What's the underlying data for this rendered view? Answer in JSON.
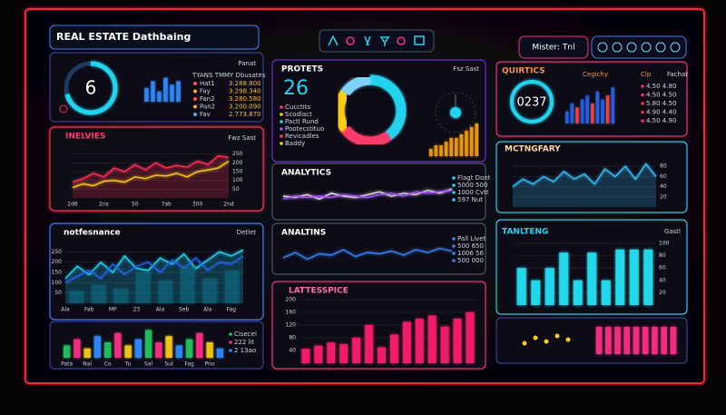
{
  "header": {
    "title": "REAL ESTATE Dathbaing",
    "user": "Mister: Tnl"
  },
  "kpi": {
    "big": "6",
    "legend_title": "TYANS TMMY Dbusates",
    "tag": "Panat",
    "rows": [
      {
        "name": "Hat1",
        "value": "3.288.800",
        "color": "#ff4d4d"
      },
      {
        "name": "Fay",
        "value": "3.298.340",
        "color": "#ffb020"
      },
      {
        "name": "Fan2",
        "value": "3.280.580",
        "color": "#ff4d4d"
      },
      {
        "name": "Pan2",
        "value": "3.200.090",
        "color": "#ffb020"
      },
      {
        "name": "Fav",
        "value": "2.773.870",
        "color": "#60a5fa"
      }
    ]
  },
  "inelvies": {
    "title": "INELVIES",
    "tag": "Fwz Sast"
  },
  "performance": {
    "title": "notfesnance",
    "tag": "Detlet"
  },
  "mix": {
    "rows": [
      "Cisecel",
      "222 lit",
      "2 13ao"
    ]
  },
  "projects": {
    "title": "PROTETS",
    "big": "26",
    "tag": "Fsz Sast",
    "rows": [
      "Cucctits",
      "Scodlact",
      "Pactl Rund",
      "Pootecstituo",
      "Revicadles",
      "Baddy"
    ]
  },
  "analytics": {
    "title": "ANALYTICS",
    "rows": [
      "Flagt Dont",
      "5000 500",
      "1000 Cvtt",
      "597 Nut"
    ]
  },
  "analtins": {
    "title": "ANALTINS",
    "rows": [
      "Pall Livet",
      "500 650",
      "1006 56",
      "500 000"
    ]
  },
  "lattes": {
    "title": "LATTESSPICE"
  },
  "quirtics": {
    "title": "QUIRTICS",
    "big": "0237",
    "labels": [
      "Cegichy",
      "Clp",
      "Fachat"
    ],
    "rows": [
      "4.50  4.80",
      "4.50  4.50",
      "5.80  4.50",
      "4.90  4.40",
      "4.50  4.90"
    ]
  },
  "monetary": {
    "title": "MCTNGFARY"
  },
  "tanlteng": {
    "title": "TANLTENG",
    "tag": "Gastl"
  },
  "charts": [
    {
      "type": "bar",
      "values": [
        4,
        6,
        3,
        7,
        5,
        6
      ],
      "color": "#2f8cff",
      "ylim": [
        0,
        8
      ]
    },
    {
      "type": "line",
      "ylim": [
        0,
        300
      ],
      "yticks": [
        50,
        100,
        150,
        200,
        250
      ],
      "tick_side": "right",
      "categories": [
        "2d6",
        null,
        null,
        "2ns",
        null,
        null,
        "50",
        null,
        null,
        "7ab",
        null,
        null,
        "300",
        null,
        null,
        "2nd"
      ],
      "series": [
        {
          "color": "#ff2d55",
          "area": true,
          "values": [
            90,
            110,
            140,
            120,
            170,
            150,
            190,
            160,
            200,
            170,
            185,
            175,
            210,
            190,
            240,
            230
          ]
        },
        {
          "color": "#facc15",
          "area": false,
          "values": [
            60,
            80,
            70,
            95,
            100,
            90,
            120,
            110,
            130,
            125,
            140,
            120,
            150,
            160,
            170,
            210
          ]
        }
      ]
    },
    {
      "type": "line",
      "ylim": [
        0,
        300
      ],
      "yticks": [
        50,
        100,
        150,
        200,
        250
      ],
      "tick_side": "left",
      "categories": [
        "Ala",
        null,
        "Fab",
        null,
        "MP",
        null,
        "23",
        null,
        "Ala",
        null,
        "Seb",
        null,
        "Ala",
        null,
        "Fag",
        null
      ],
      "series": [
        {
          "color": "#22d3ee",
          "area": true,
          "values": [
            120,
            180,
            140,
            200,
            150,
            230,
            170,
            160,
            220,
            190,
            240,
            170,
            210,
            250,
            230,
            260
          ]
        },
        {
          "color": "#2563eb",
          "area": false,
          "values": [
            100,
            130,
            160,
            120,
            190,
            140,
            180,
            200,
            150,
            210,
            170,
            220,
            160,
            200,
            190,
            230
          ]
        }
      ]
    },
    {
      "type": "bar",
      "values": [
        60,
        90,
        70,
        150,
        110,
        180,
        120,
        160
      ],
      "color": "#0e7490",
      "ylim": [
        0,
        300
      ]
    },
    {
      "type": "bar",
      "ylim": [
        0,
        10
      ],
      "values": [
        4,
        6,
        3,
        7,
        5,
        8,
        4,
        6,
        9,
        5,
        7,
        4,
        6,
        8,
        5,
        3
      ],
      "colors": [
        "#22c55e",
        "#ff2d87",
        "#facc15",
        "#2f8cff",
        "#22c55e",
        "#ff2d87",
        "#facc15",
        "#2f8cff",
        "#22c55e",
        "#ff2d87",
        "#facc15",
        "#2f8cff",
        "#22c55e",
        "#ff2d87",
        "#facc15",
        "#2f8cff"
      ],
      "categories": [
        "Pata",
        null,
        "Nal",
        null,
        "Co",
        null,
        "Tu",
        null,
        "Sal",
        null,
        "Sul",
        null,
        "Fag",
        null,
        "Pno",
        null
      ]
    },
    {
      "type": "donut",
      "values": [
        40,
        25,
        20,
        15
      ],
      "colors": [
        "#22d3ee",
        "#ff3b6b",
        "#facc15",
        "#7dd3fc"
      ]
    },
    {
      "type": "bar",
      "values": [
        2,
        3,
        3,
        4,
        5,
        5,
        6,
        7,
        8,
        9
      ],
      "color": "#f59e0b",
      "ylim": [
        0,
        10
      ]
    },
    {
      "type": "line",
      "ylim": [
        0,
        100
      ],
      "series": [
        {
          "color": "#e5e7eb",
          "area": false,
          "values": [
            50,
            45,
            55,
            40,
            60,
            50,
            45,
            55,
            65,
            50,
            60,
            55,
            70,
            60,
            75
          ]
        },
        {
          "color": "#a855f7",
          "area": false,
          "values": [
            40,
            50,
            45,
            50,
            45,
            55,
            50,
            45,
            55,
            60,
            50,
            65,
            60,
            65,
            70
          ]
        }
      ]
    },
    {
      "type": "line",
      "ylim": [
        0,
        100
      ],
      "series": [
        {
          "color": "#3b82f6",
          "area": false,
          "values": [
            40,
            60,
            35,
            55,
            50,
            70,
            45,
            60,
            55,
            65,
            50,
            70,
            60,
            75,
            65
          ]
        }
      ]
    },
    {
      "type": "bar",
      "values": [
        45,
        55,
        65,
        60,
        80,
        120,
        50,
        90,
        130,
        140,
        150,
        115,
        140,
        160
      ],
      "color": "#ff1f6b",
      "ylim": [
        0,
        200
      ],
      "yticks": [
        40,
        80,
        120,
        160,
        200
      ],
      "tick_side": "left"
    },
    {
      "type": "bar",
      "values": [
        3,
        5,
        4,
        6,
        7,
        5,
        8,
        6,
        7,
        9
      ],
      "ylim": [
        0,
        10
      ],
      "colors": [
        "#2563eb",
        "#2563eb",
        "#ef4444",
        "#2563eb",
        "#2563eb",
        "#ef4444",
        "#2563eb",
        "#2563eb",
        "#ef4444",
        "#2563eb"
      ]
    },
    {
      "type": "line",
      "ylim": [
        0,
        100
      ],
      "yticks": [
        20,
        40,
        60,
        80
      ],
      "tick_side": "right",
      "series": [
        {
          "color": "#38bdf8",
          "area": true,
          "values": [
            40,
            55,
            45,
            60,
            50,
            70,
            55,
            65,
            45,
            75,
            60,
            80,
            55,
            85,
            60
          ]
        }
      ]
    },
    {
      "type": "bar",
      "values": [
        60,
        40,
        60,
        85,
        40,
        85,
        40,
        90,
        90,
        90
      ],
      "color": "#22e3f5",
      "ylim": [
        0,
        100
      ],
      "yticks": [
        20,
        40,
        60,
        80,
        100
      ],
      "tick_side": "right"
    },
    {
      "type": "bar",
      "values": [
        5,
        5,
        5,
        5,
        5,
        5,
        5,
        5,
        5
      ],
      "color": "#ff2d87",
      "ylim": [
        0,
        5
      ]
    }
  ]
}
